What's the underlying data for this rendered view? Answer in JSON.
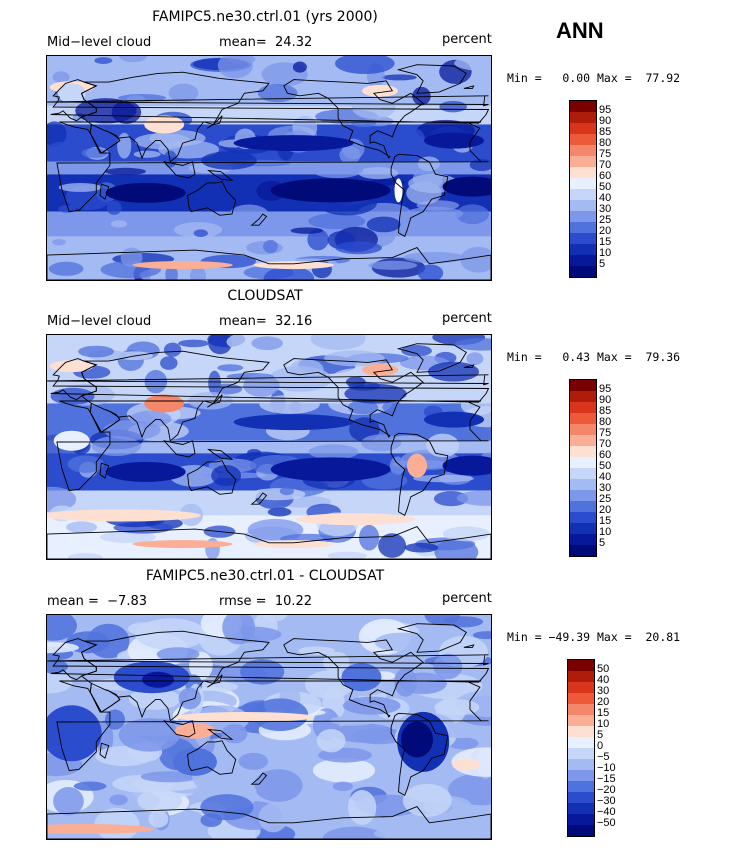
{
  "season": "ANN",
  "panels": [
    {
      "title": "FAMIPC5.ne30.ctrl.01 (yrs 2000)",
      "left": "Mid−level cloud",
      "center": "mean=  24.32",
      "right": "percent",
      "minmax": "Min =   0.00 Max =  77.92",
      "cbar_labels": [
        "95",
        "90",
        "85",
        "80",
        "75",
        "70",
        "60",
        "50",
        "40",
        "30",
        "25",
        "20",
        "15",
        "10",
        "5"
      ]
    },
    {
      "title": "CLOUDSAT",
      "left": "Mid−level cloud",
      "center": "mean=  32.16",
      "right": "percent",
      "minmax": "Min =   0.43 Max =  79.36",
      "cbar_labels": [
        "95",
        "90",
        "85",
        "80",
        "75",
        "70",
        "60",
        "50",
        "40",
        "30",
        "25",
        "20",
        "15",
        "10",
        "5"
      ]
    },
    {
      "title": "FAMIPC5.ne30.ctrl.01 - CLOUDSAT",
      "left": "mean =  −7.83",
      "center": "rmse =  10.22",
      "right": "percent",
      "minmax": "Min = −49.39 Max =  20.81",
      "cbar_labels": [
        "50",
        "40",
        "30",
        "20",
        "15",
        "10",
        "5",
        "0",
        "−5",
        "−10",
        "−15",
        "−20",
        "−30",
        "−40",
        "−50"
      ]
    }
  ],
  "colors": {
    "palette16": [
      "#7a0000",
      "#b01c0a",
      "#d8351c",
      "#ec5a3a",
      "#f4866a",
      "#fbae96",
      "#fde0d2",
      "#e8f0ff",
      "#c6d6f8",
      "#a4baf2",
      "#7d97ea",
      "#5072dc",
      "#2b4ccd",
      "#1230b4",
      "#07189a",
      "#000a78"
    ],
    "land_outline": "#000000",
    "ocean_base": "#c6d6f8"
  }
}
